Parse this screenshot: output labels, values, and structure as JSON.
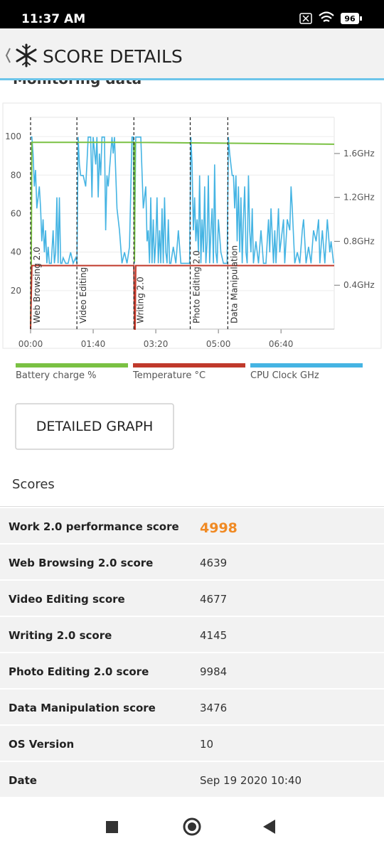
{
  "status_bar": {
    "time": "11:37 AM",
    "battery": "96"
  },
  "header": {
    "title": "SCORE DETAILS"
  },
  "section_title": "Monitoring data",
  "chart_data": {
    "type": "line",
    "xlim": [
      0,
      485
    ],
    "xticks": [
      {
        "value": 0,
        "label": "00:00"
      },
      {
        "value": 100,
        "label": "01:40"
      },
      {
        "value": 200,
        "label": "03:20"
      },
      {
        "value": 300,
        "label": "05:00"
      },
      {
        "value": 400,
        "label": "06:40"
      }
    ],
    "ylim": [
      0,
      110
    ],
    "yticks": [
      20,
      40,
      60,
      80,
      100
    ],
    "y2lim": [
      0,
      1.93
    ],
    "y2ticks": [
      {
        "value": 0.4,
        "label": "0.4GHz"
      },
      {
        "value": 0.8,
        "label": "0.8GHz"
      },
      {
        "value": 1.2,
        "label": "1.2GHz"
      },
      {
        "value": 1.6,
        "label": "1.6GHz"
      }
    ],
    "grid": true,
    "markers": [
      {
        "x": 0,
        "label": "Web Browsing 2.0"
      },
      {
        "x": 74,
        "label": "Video Editing"
      },
      {
        "x": 165,
        "label": "Writing 2.0"
      },
      {
        "x": 255,
        "label": "Photo Editing 2.0"
      },
      {
        "x": 315,
        "label": "Data Manipulation"
      }
    ],
    "series": [
      {
        "name": "Battery charge %",
        "color": "#7ac143",
        "x": [
          0,
          1,
          2,
          165,
          166,
          167,
          485
        ],
        "values": [
          0,
          33,
          97,
          97,
          35,
          97,
          96
        ]
      },
      {
        "name": "Temperature °C",
        "color": "#c0392b",
        "x": [
          0,
          2,
          165,
          166,
          167,
          168,
          485
        ],
        "values": [
          0,
          33,
          33,
          0,
          0,
          33,
          33
        ]
      },
      {
        "name": "CPU Clock GHz",
        "color": "#45b4e3",
        "axis": "y2",
        "x": [
          0,
          2,
          4,
          6,
          8,
          10,
          12,
          14,
          16,
          18,
          20,
          22,
          24,
          26,
          28,
          30,
          33,
          36,
          38,
          40,
          42,
          44,
          46,
          48,
          50,
          52,
          56,
          60,
          64,
          68,
          72,
          74,
          76,
          78,
          80,
          84,
          88,
          90,
          92,
          96,
          98,
          100,
          104,
          106,
          108,
          110,
          112,
          114,
          118,
          120,
          122,
          124,
          128,
          130,
          132,
          134,
          138,
          142,
          146,
          150,
          154,
          158,
          162,
          164,
          166,
          168,
          172,
          176,
          180,
          184,
          186,
          188,
          190,
          192,
          194,
          196,
          198,
          200,
          202,
          204,
          206,
          208,
          210,
          212,
          214,
          216,
          218,
          220,
          222,
          224,
          228,
          232,
          236,
          240,
          244,
          248,
          252,
          254,
          256,
          258,
          260,
          262,
          264,
          266,
          268,
          270,
          272,
          274,
          276,
          278,
          280,
          282,
          284,
          286,
          288,
          290,
          292,
          294,
          296,
          298,
          300,
          304,
          308,
          312,
          314,
          316,
          318,
          320,
          322,
          324,
          326,
          328,
          330,
          332,
          334,
          336,
          338,
          340,
          342,
          344,
          346,
          348,
          350,
          352,
          354,
          356,
          360,
          364,
          368,
          372,
          376,
          380,
          382,
          384,
          388,
          390,
          392,
          396,
          398,
          400,
          404,
          406,
          410,
          414,
          416,
          418,
          422,
          426,
          430,
          434,
          436,
          440,
          444,
          448,
          452,
          456,
          460,
          462,
          466,
          470,
          474,
          478,
          480,
          484
        ],
        "values": [
          1.75,
          1.75,
          1.6,
          1.3,
          1.45,
          1.1,
          1.2,
          1.3,
          1.1,
          0.8,
          1.0,
          0.7,
          0.9,
          0.6,
          0.75,
          0.6,
          0.6,
          0.9,
          0.6,
          0.7,
          1.2,
          0.6,
          1.2,
          0.6,
          0.6,
          0.65,
          0.6,
          0.6,
          0.7,
          0.6,
          0.65,
          0.6,
          1.75,
          1.5,
          1.4,
          1.4,
          1.3,
          1.5,
          1.75,
          1.75,
          1.2,
          1.75,
          1.5,
          1.75,
          1.2,
          1.6,
          1.4,
          1.75,
          1.75,
          0.9,
          1.4,
          1.3,
          1.6,
          1.75,
          1.6,
          1.75,
          1.1,
          0.9,
          0.6,
          0.7,
          0.6,
          0.75,
          1.75,
          1.75,
          0.6,
          1.75,
          1.75,
          1.75,
          1.1,
          1.3,
          0.8,
          0.9,
          0.6,
          1.2,
          0.6,
          1.0,
          0.6,
          0.8,
          1.2,
          0.6,
          0.9,
          0.6,
          1.1,
          0.6,
          1.2,
          0.7,
          0.6,
          1.0,
          0.6,
          0.6,
          0.75,
          0.6,
          0.9,
          0.6,
          0.6,
          0.6,
          0.6,
          0.6,
          1.75,
          1.5,
          0.9,
          1.2,
          0.8,
          1.0,
          0.7,
          1.4,
          0.6,
          1.0,
          0.7,
          1.3,
          0.6,
          0.8,
          1.4,
          0.6,
          0.9,
          1.1,
          0.6,
          1.5,
          0.7,
          0.6,
          1.0,
          0.7,
          0.6,
          0.6,
          0.6,
          1.75,
          1.6,
          1.5,
          1.4,
          1.4,
          1.1,
          1.4,
          0.8,
          1.3,
          0.7,
          1.2,
          0.6,
          1.0,
          1.3,
          0.7,
          0.6,
          1.4,
          0.9,
          0.7,
          1.1,
          0.6,
          0.8,
          0.6,
          0.9,
          0.6,
          0.6,
          1.0,
          0.7,
          1.1,
          0.6,
          0.9,
          0.6,
          1.1,
          0.7,
          0.8,
          1.0,
          0.6,
          1.0,
          0.9,
          1.3,
          1.1,
          0.6,
          0.7,
          0.6,
          0.9,
          1.0,
          0.6,
          0.75,
          0.6,
          0.9,
          0.8,
          1.0,
          0.6,
          0.9,
          0.6,
          1.0,
          0.7,
          0.8,
          0.6
        ]
      }
    ]
  },
  "button": "DETAILED GRAPH",
  "scores": {
    "title": "Scores",
    "rows": [
      [
        "Work 2.0 performance score",
        4998
      ],
      [
        "Web Browsing 2.0 score",
        4639
      ],
      [
        "Video Editing score",
        4677
      ],
      [
        "Writing 2.0 score",
        4145
      ],
      [
        "Photo Editing 2.0 score",
        9984
      ],
      [
        "Data Manipulation score",
        3476
      ],
      [
        "OS Version",
        10
      ],
      [
        "Date",
        "Sep 19 2020 10:40"
      ]
    ]
  }
}
